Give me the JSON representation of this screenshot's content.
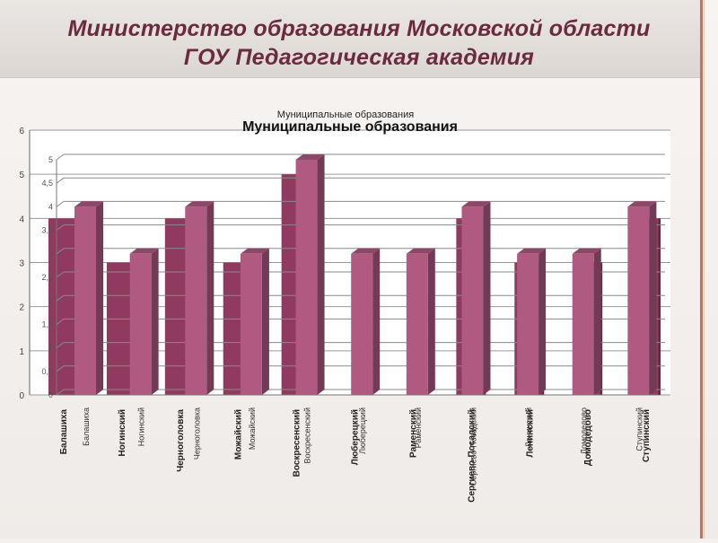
{
  "slide": {
    "title_line1": "Министерство образования Московской области",
    "title_line2": "ГОУ Педагогическая академия"
  },
  "chart_data": [
    {
      "type": "bar",
      "title": "Муниципальные образования",
      "categories": [
        "Балашиха",
        "Ногинский",
        "Черноголовка",
        "Можайский",
        "Воскресенский",
        "Люберецкий",
        "Раменский",
        "Сергиево-Посадский",
        "Ленинский",
        "Домодедово",
        "Ступинский"
      ],
      "values": [
        4,
        3,
        4,
        3,
        5,
        3,
        3,
        4,
        3,
        3,
        4
      ],
      "ylim": [
        0,
        5
      ],
      "yticks": [
        "0",
        "0,5",
        "1",
        "1,5",
        "2",
        "2,5",
        "3",
        "3,5",
        "4",
        "4,5",
        "5"
      ],
      "color": "#b05a82",
      "grid": true
    },
    {
      "type": "bar",
      "title": "Муниципальные образования",
      "categories": [
        "Балашиха",
        "Ногинский",
        "Черноголовка",
        "Можайский",
        "Воскресенский",
        "Люберецкий",
        "Раменский",
        "Сергиево-Посадский",
        "Ленинский",
        "Домодедово",
        "Ступинский"
      ],
      "values": [
        4,
        3,
        4,
        3,
        5,
        0,
        0,
        4,
        3,
        3,
        4
      ],
      "ylim": [
        0,
        6
      ],
      "yticks": [
        "0",
        "1",
        "2",
        "3",
        "4",
        "5",
        "6"
      ],
      "color": "#8f3a5e",
      "grid": true
    }
  ]
}
